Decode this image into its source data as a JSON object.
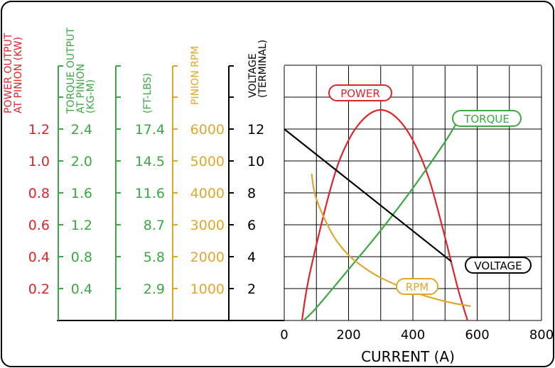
{
  "colors": {
    "power": "#e0242c",
    "torque": "#3aa843",
    "ftlbs": "#3aa843",
    "rpm": "#e0a82a",
    "voltage": "#000000",
    "grid": "#000000",
    "frame": "#000000"
  },
  "axes": {
    "power": {
      "title": [
        "POWER OUTPUT",
        "AT PINION (KW)"
      ],
      "ticks": [
        "1.2",
        "1.0",
        "0.8",
        "0.6",
        "0.4",
        "0.2"
      ]
    },
    "torque": {
      "title": [
        "TORQUE OUTPUT",
        "AT PINION",
        "(KG-M)"
      ],
      "ticks": [
        "2.4",
        "2.0",
        "1.6",
        "1.2",
        "0.8",
        "0.4"
      ]
    },
    "ftlbs": {
      "title": [
        "(FT-LBS)"
      ],
      "ticks": [
        "17.4",
        "14.5",
        "11.6",
        "8.7",
        "5.8",
        "2.9"
      ]
    },
    "rpm": {
      "title": [
        "PINION RPM"
      ],
      "ticks": [
        "6000",
        "5000",
        "4000",
        "3000",
        "2000",
        "1000"
      ]
    },
    "voltage": {
      "title": [
        "VOLTAGE",
        "(TERMINAL)"
      ],
      "ticks": [
        "12",
        "10",
        "8",
        "6",
        "4",
        "2"
      ]
    }
  },
  "chart_data": {
    "type": "line",
    "xlabel": "CURRENT (A)",
    "xlim": [
      0,
      800
    ],
    "x_ticks": [
      "0",
      "200",
      "400",
      "600",
      "800"
    ],
    "ylim": [
      0,
      14
    ],
    "grid": true,
    "series": [
      {
        "name": "POWER",
        "unit_axis": "power",
        "color_key": "power",
        "x": [
          55,
          80,
          150,
          200,
          250,
          300,
          350,
          400,
          450,
          500,
          540,
          570
        ],
        "y": [
          0,
          0.3,
          0.87,
          1.13,
          1.27,
          1.32,
          1.27,
          1.13,
          0.89,
          0.52,
          0.2,
          0
        ]
      },
      {
        "name": "TORQUE",
        "unit_axis": "torque",
        "color_key": "torque",
        "x": [
          60,
          100,
          200,
          300,
          400,
          500,
          545
        ],
        "y": [
          0,
          0.16,
          0.64,
          1.13,
          1.66,
          2.24,
          2.54
        ]
      },
      {
        "name": "RPM",
        "unit_axis": "rpm",
        "color_key": "rpm",
        "x": [
          85,
          100,
          150,
          200,
          250,
          300,
          400,
          500,
          580
        ],
        "y": [
          4600,
          3800,
          2700,
          2050,
          1650,
          1340,
          900,
          600,
          450
        ]
      },
      {
        "name": "VOLTAGE",
        "unit_axis": "voltage",
        "color_key": "voltage",
        "x": [
          0,
          520
        ],
        "y": [
          12,
          3.7
        ]
      }
    ],
    "labels": [
      {
        "text": "POWER",
        "series": "POWER"
      },
      {
        "text": "TORQUE",
        "series": "TORQUE"
      },
      {
        "text": "RPM",
        "series": "RPM"
      },
      {
        "text": "VOLTAGE",
        "series": "VOLTAGE"
      }
    ]
  }
}
